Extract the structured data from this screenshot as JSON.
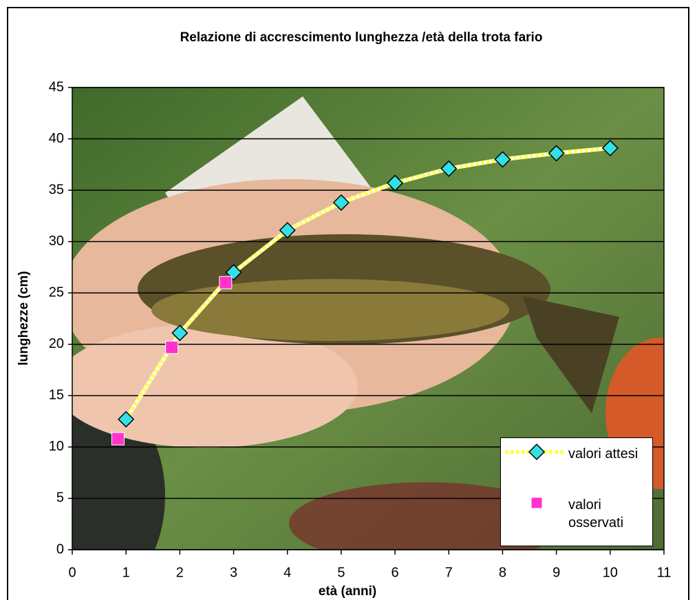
{
  "chart_data": {
    "type": "line",
    "title": "Relazione di accrescimento lunghezza /età della trota fario",
    "x_label": "età (anni)",
    "y_label": "lunghezze (cm)",
    "xlim": [
      0,
      11
    ],
    "xticks": [
      0,
      1,
      2,
      3,
      4,
      5,
      6,
      7,
      8,
      9,
      10,
      11
    ],
    "ylim": [
      0,
      45
    ],
    "yticks": [
      0,
      5,
      10,
      15,
      20,
      25,
      30,
      35,
      40,
      45
    ],
    "grid": true,
    "grid_color": "#000000",
    "legend": "lower right",
    "series": [
      {
        "name": "valori attesi",
        "color": "#ffff55",
        "marker": "diamond",
        "marker_color": "#33e0e6",
        "x": [
          1,
          2,
          3,
          4,
          5,
          6,
          7,
          8,
          9,
          10
        ],
        "values": [
          12.7,
          21.1,
          27.0,
          31.1,
          33.8,
          35.7,
          37.1,
          38.0,
          38.6,
          39.1
        ]
      },
      {
        "name": "valori osservati",
        "marker": "square",
        "marker_color": "#ff33cc",
        "x": [
          0.85,
          1.85,
          2.85
        ],
        "values": [
          10.8,
          19.7,
          26.0
        ]
      }
    ]
  }
}
